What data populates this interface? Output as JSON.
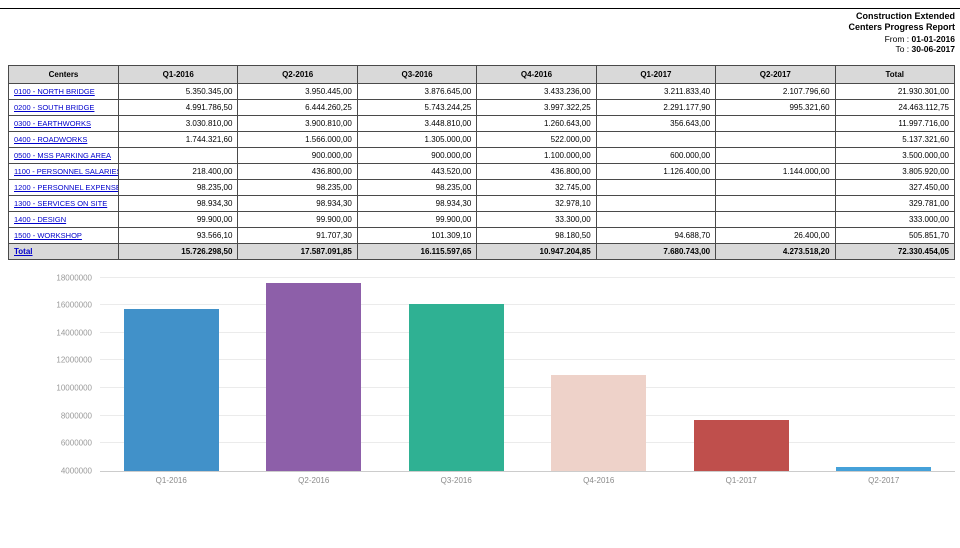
{
  "report": {
    "title_line1": "Construction Extended",
    "title_line2": "Centers Progress Report",
    "from_label": "From :",
    "from_date": "01-01-2016",
    "to_label": "To :",
    "to_date": "30-06-2017"
  },
  "table": {
    "columns": [
      "Centers",
      "Q1-2016",
      "Q2-2016",
      "Q3-2016",
      "Q4-2016",
      "Q1-2017",
      "Q2-2017",
      "Total"
    ],
    "rows": [
      {
        "center": "0100 - NORTH BRIDGE",
        "values": [
          "5.350.345,00",
          "3.950.445,00",
          "3.876.645,00",
          "3.433.236,00",
          "3.211.833,40",
          "2.107.796,60",
          "21.930.301,00"
        ]
      },
      {
        "center": "0200 - SOUTH BRIDGE",
        "values": [
          "4.991.786,50",
          "6.444.260,25",
          "5.743.244,25",
          "3.997.322,25",
          "2.291.177,90",
          "995.321,60",
          "24.463.112,75"
        ]
      },
      {
        "center": "0300 - EARTHWORKS",
        "values": [
          "3.030.810,00",
          "3.900.810,00",
          "3.448.810,00",
          "1.260.643,00",
          "356.643,00",
          "",
          "11.997.716,00"
        ]
      },
      {
        "center": "0400 - ROADWORKS",
        "values": [
          "1.744.321,60",
          "1.566.000,00",
          "1.305.000,00",
          "522.000,00",
          "",
          "",
          "5.137.321,60"
        ]
      },
      {
        "center": "0500 - MSS PARKING AREA",
        "values": [
          "",
          "900.000,00",
          "900.000,00",
          "1.100.000,00",
          "600.000,00",
          "",
          "3.500.000,00"
        ]
      },
      {
        "center": "1100 - PERSONNEL SALARIES",
        "values": [
          "218.400,00",
          "436.800,00",
          "443.520,00",
          "436.800,00",
          "1.126.400,00",
          "1.144.000,00",
          "3.805.920,00"
        ]
      },
      {
        "center": "1200 - PERSONNEL EXPENSES",
        "values": [
          "98.235,00",
          "98.235,00",
          "98.235,00",
          "32.745,00",
          "",
          "",
          "327.450,00"
        ]
      },
      {
        "center": "1300 - SERVICES ON SITE",
        "values": [
          "98.934,30",
          "98.934,30",
          "98.934,30",
          "32.978,10",
          "",
          "",
          "329.781,00"
        ]
      },
      {
        "center": "1400 - DESIGN",
        "values": [
          "99.900,00",
          "99.900,00",
          "99.900,00",
          "33.300,00",
          "",
          "",
          "333.000,00"
        ]
      },
      {
        "center": "1500 - WORKSHOP",
        "values": [
          "93.566,10",
          "91.707,30",
          "101.309,10",
          "98.180,50",
          "94.688,70",
          "26.400,00",
          "505.851,70"
        ]
      }
    ],
    "total": {
      "label": "Total",
      "values": [
        "15.726.298,50",
        "17.587.091,85",
        "16.115.597,65",
        "10.947.204,85",
        "7.680.743,00",
        "4.273.518,20",
        "72.330.454,05"
      ]
    }
  },
  "chart_data": {
    "type": "bar",
    "title": "",
    "xlabel": "",
    "ylabel": "",
    "categories": [
      "Q1-2016",
      "Q2-2016",
      "Q3-2016",
      "Q4-2016",
      "Q1-2017",
      "Q2-2017"
    ],
    "values": [
      15726298.5,
      17587091.85,
      16115597.65,
      10947204.85,
      7680743.0,
      4273518.2
    ],
    "bar_colors": [
      "#4191c9",
      "#8d5fa9",
      "#2fb193",
      "#eed2c9",
      "#bf4f4c",
      "#45a1d9"
    ],
    "ylim": [
      4000000,
      18000000
    ],
    "yticks": [
      4000000,
      6000000,
      8000000,
      10000000,
      12000000,
      14000000,
      16000000,
      18000000
    ],
    "ytick_labels": [
      "4000000",
      "6000000",
      "8000000",
      "10000000",
      "12000000",
      "14000000",
      "16000000",
      "18000000"
    ],
    "grid": true,
    "legend_position": "none"
  }
}
